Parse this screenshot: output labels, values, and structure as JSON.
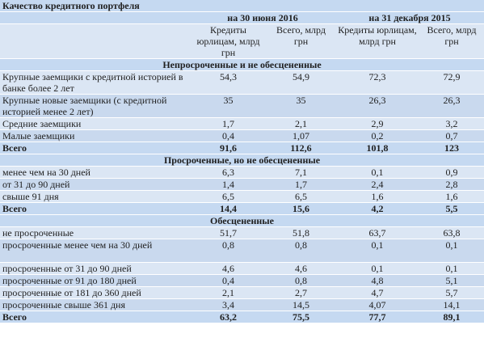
{
  "title": "Качество кредитного портфеля",
  "periods": [
    "на 30 июня 2016",
    "на 31 декабря 2015"
  ],
  "col_headers": [
    "Кредиты юрлицам, млрд грн",
    "Всего, млрд грн",
    "Кредиты юрлицам, млрд грн",
    "Всего, млрд грн"
  ],
  "sections": [
    {
      "title": "Непросроченные и не обесцененные",
      "rows": [
        {
          "label": "Крупные заемщики с кредитной историей в банке более 2 лет",
          "values": [
            "54,3",
            "54,9",
            "72,3",
            "72,9"
          ]
        },
        {
          "label": "Крупные новые заемщики (с кредитной историей менее 2 лет)",
          "values": [
            "35",
            "35",
            "26,3",
            "26,3"
          ]
        },
        {
          "label": "Средние заемщики",
          "values": [
            "1,7",
            "2,1",
            "2,9",
            "3,2"
          ]
        },
        {
          "label": "Малые заемщики",
          "values": [
            "0,4",
            "1,07",
            "0,2",
            "0,7"
          ]
        }
      ],
      "total": {
        "label": "Всего",
        "values": [
          "91,6",
          "112,6",
          "101,8",
          "123"
        ]
      }
    },
    {
      "title": "Просроченные, но не обесцененные",
      "rows": [
        {
          "label": "менее чем на 30 дней",
          "values": [
            "6,3",
            "7,1",
            "0,1",
            "0,9"
          ]
        },
        {
          "label": "от 31 до 90 дней",
          "values": [
            "1,4",
            "1,7",
            "2,4",
            "2,8"
          ]
        },
        {
          "label": "свыше 91 дня",
          "values": [
            "6,5",
            "6,5",
            "1,6",
            "1,6"
          ]
        }
      ],
      "total": {
        "label": "Всего",
        "values": [
          "14,4",
          "15,6",
          "4,2",
          "5,5"
        ]
      }
    },
    {
      "title": "Обесцененные",
      "rows": [
        {
          "label": "не просроченные",
          "values": [
            "51,7",
            "51,8",
            "63,7",
            "63,8"
          ]
        },
        {
          "label": "просроченные менее чем на 30 дней",
          "values": [
            "0,8",
            "0,8",
            "0,1",
            "0,1"
          ]
        },
        {
          "label": "просроченные от 31 до 90 дней",
          "values": [
            "4,6",
            "4,6",
            "0,1",
            "0,1"
          ]
        },
        {
          "label": "просроченные от 91 до 180 дней",
          "values": [
            "0,4",
            "0,8",
            "4,8",
            "5,1"
          ]
        },
        {
          "label": "просроченные от 181 до 360 дней",
          "values": [
            "2,1",
            "2,7",
            "4,7",
            "5,7"
          ]
        },
        {
          "label": "просроченные свыше 361 дня",
          "values": [
            "3,4",
            "14,5",
            "4,07",
            "14,1"
          ]
        }
      ],
      "total": {
        "label": "Всего",
        "values": [
          "63,2",
          "75,5",
          "77,7",
          "89,1"
        ]
      }
    }
  ]
}
